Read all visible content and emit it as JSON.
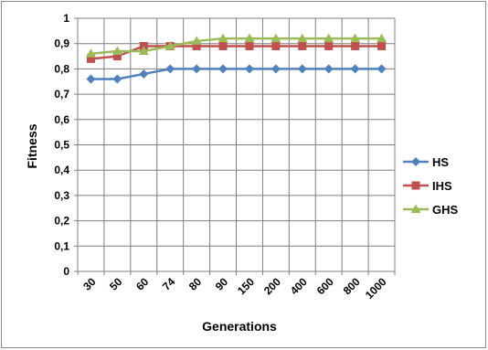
{
  "chart_data": {
    "type": "line",
    "title": "",
    "xlabel": "Generations",
    "ylabel": "Fitness",
    "categories": [
      "30",
      "50",
      "60",
      "74",
      "80",
      "90",
      "150",
      "200",
      "400",
      "600",
      "800",
      "1000"
    ],
    "ylim": [
      0,
      1
    ],
    "y_ticks": [
      "0",
      "0,1",
      "0,2",
      "0,3",
      "0,4",
      "0,5",
      "0,6",
      "0,7",
      "0,8",
      "0,9",
      "1"
    ],
    "grid": true,
    "legend_position": "right",
    "series": [
      {
        "name": "HS",
        "color": "#4f81bd",
        "marker": "diamond",
        "values": [
          0.76,
          0.76,
          0.78,
          0.8,
          0.8,
          0.8,
          0.8,
          0.8,
          0.8,
          0.8,
          0.8,
          0.8
        ]
      },
      {
        "name": "IHS",
        "color": "#c0504d",
        "marker": "square",
        "values": [
          0.84,
          0.85,
          0.89,
          0.89,
          0.89,
          0.89,
          0.89,
          0.89,
          0.89,
          0.89,
          0.89,
          0.89
        ]
      },
      {
        "name": "GHS",
        "color": "#9bbb59",
        "marker": "triangle",
        "values": [
          0.86,
          0.87,
          0.87,
          0.89,
          0.91,
          0.92,
          0.92,
          0.92,
          0.92,
          0.92,
          0.92,
          0.92
        ]
      }
    ]
  }
}
